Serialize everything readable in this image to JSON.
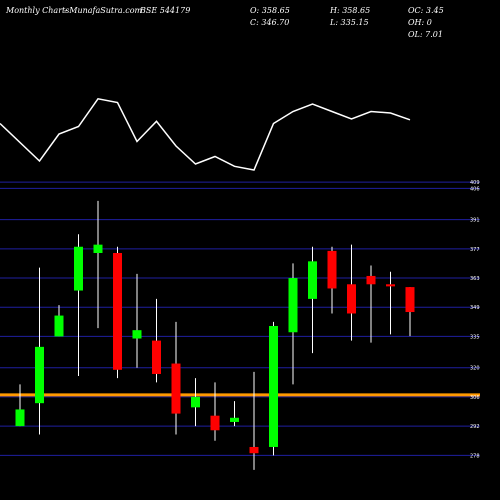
{
  "header": {
    "left": [
      "Monthly Charts",
      "- MunafaSutra.com",
      "BSE 544179"
    ],
    "ohlc": [
      [
        "O: 358.65",
        "C: 346.70"
      ],
      [
        "H: 358.65",
        "L: 335.15"
      ],
      [
        "OC: 3.45",
        "OH: 0",
        "OL: 7.01"
      ]
    ]
  },
  "colors": {
    "background": "#000000",
    "up": "#00ff00",
    "down": "#ff0000",
    "wick": "#ffffff",
    "grid": "#1f1fa0",
    "support": "#ff9900",
    "line": "#ffffff",
    "text": "#ffffff"
  },
  "chart_data": [
    {
      "type": "candlestick",
      "title": "",
      "ylim": [
        270,
        410
      ],
      "y_ticks": [
        {
          "value": 409,
          "label": "409"
        },
        {
          "value": 406,
          "label": "406"
        },
        {
          "value": 391,
          "label": "391"
        },
        {
          "value": 377,
          "label": "377"
        },
        {
          "value": 363,
          "label": "363"
        },
        {
          "value": 349,
          "label": "349"
        },
        {
          "value": 335,
          "label": "335"
        },
        {
          "value": 320,
          "label": "320"
        },
        {
          "value": 306,
          "label": "306"
        },
        {
          "value": 292,
          "label": "292"
        },
        {
          "value": 278,
          "label": "278"
        }
      ],
      "support_level": 307,
      "candles": [
        {
          "open": 292,
          "close": 300,
          "high": 312,
          "low": 292
        },
        {
          "open": 303,
          "close": 330,
          "high": 368,
          "low": 288
        },
        {
          "open": 335,
          "close": 345,
          "high": 350,
          "low": 335
        },
        {
          "open": 357,
          "close": 378,
          "high": 384,
          "low": 316
        },
        {
          "open": 375,
          "close": 379,
          "high": 400,
          "low": 339
        },
        {
          "open": 375,
          "close": 319,
          "high": 378,
          "low": 315
        },
        {
          "open": 334,
          "close": 338,
          "high": 365,
          "low": 320
        },
        {
          "open": 333,
          "close": 317,
          "high": 353,
          "low": 313
        },
        {
          "open": 322,
          "close": 298,
          "high": 342,
          "low": 288
        },
        {
          "open": 301,
          "close": 306,
          "high": 315,
          "low": 292
        },
        {
          "open": 297,
          "close": 290,
          "high": 313,
          "low": 285
        },
        {
          "open": 294,
          "close": 296,
          "high": 304,
          "low": 292
        },
        {
          "open": 282,
          "close": 279,
          "high": 318,
          "low": 271
        },
        {
          "open": 282,
          "close": 340,
          "high": 342,
          "low": 278
        },
        {
          "open": 337,
          "close": 363,
          "high": 370,
          "low": 312
        },
        {
          "open": 353,
          "close": 371,
          "high": 378,
          "low": 327
        },
        {
          "open": 376,
          "close": 358,
          "high": 378,
          "low": 346
        },
        {
          "open": 360,
          "close": 346,
          "high": 379,
          "low": 333
        },
        {
          "open": 364,
          "close": 360,
          "high": 369,
          "low": 332
        },
        {
          "open": 360,
          "close": 359,
          "high": 366,
          "low": 336
        },
        {
          "open": 358.65,
          "close": 346.7,
          "high": 358.65,
          "low": 335.15
        }
      ],
      "indicator_line": [
        0.62,
        0.12,
        0.48,
        0.58,
        0.95,
        0.9,
        0.38,
        0.65,
        0.32,
        0.08,
        0.18,
        0.05,
        0.0,
        0.62,
        0.78,
        0.88,
        0.78,
        0.68,
        0.78,
        0.76,
        0.67
      ]
    }
  ]
}
